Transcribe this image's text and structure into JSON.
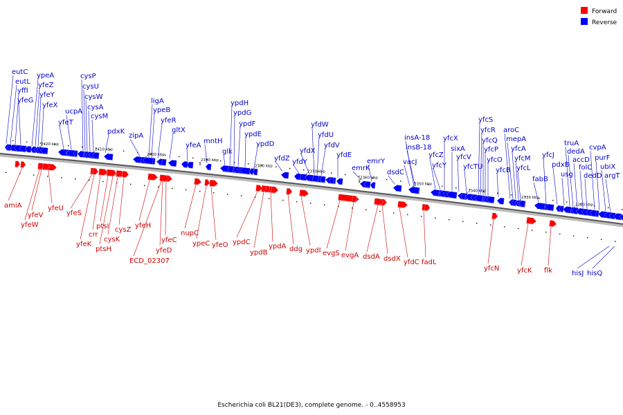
{
  "legend": [
    {
      "label": "Forward",
      "color": "#ff0000"
    },
    {
      "label": "Reverse",
      "color": "#0000ff"
    }
  ],
  "caption": "Escherichia coli BL21(DE3), complete genome. - 0..4558953",
  "colors": {
    "forward": "#ff0000",
    "reverse": "#0000ff",
    "leader_fwd": "#cc0000",
    "leader_rev": "#0000cc"
  },
  "ticks": [
    "2420 kbp",
    "2410 kbp",
    "2400 kbp",
    "2390 kbp",
    "2380 kbp",
    "2370 kbp",
    "2360 kbp",
    "2350 kbp",
    "2340 kbp",
    "2330 kbp",
    "2320 kbp"
  ],
  "reverse_genes": [
    "eutC",
    "eutL",
    "yffI",
    "yfeG",
    "ypeA",
    "yfeZ",
    "yfeY",
    "yfeX",
    "cysP",
    "cysU",
    "cysW",
    "cysA",
    "cysM",
    "ucpA",
    "yfeT",
    "pdxK",
    "zipA",
    "ligA",
    "ypeB",
    "yfeR",
    "gltX",
    "yfeA",
    "mntH",
    "ypdH",
    "ypdG",
    "ypdF",
    "ypdE",
    "ypdD",
    "glk",
    "yfdW",
    "yfdU",
    "yfdV",
    "yfdX",
    "yfdY",
    "yfdZ",
    "yfdE",
    "emrY",
    "emrK",
    "dsdC",
    "insA-18",
    "insB-18",
    "vacJ",
    "yfcZ",
    "yfcY",
    "yfcX",
    "sixA",
    "yfcV",
    "yfcTU",
    "yfcS",
    "yfcR",
    "yfcQ",
    "yfcP",
    "yfcO",
    "aroC",
    "mepA",
    "yfcA",
    "yfcM",
    "yfcB",
    "yfcL",
    "fabB",
    "yfcJ",
    "truA",
    "dedA",
    "pdxB",
    "accD",
    "usg",
    "folC",
    "cvpA",
    "purF",
    "ubiX",
    "dedD",
    "argT",
    "hisJ",
    "hisQ"
  ],
  "forward_genes": [
    "amiA",
    "yfeV",
    "yfeW",
    "yfeU",
    "yfeS",
    "yfeK",
    "crr",
    "ptsI",
    "ptsH",
    "cysK",
    "cysZ",
    "yfeH",
    "yfeC",
    "yfeD",
    "ECD_02307",
    "nupC",
    "ypeC",
    "yfeO",
    "ypdC",
    "ypdB",
    "ypdA",
    "ddg",
    "ypdI",
    "evgS",
    "evgA",
    "dsdA",
    "dsdX",
    "yfdC",
    "fadL",
    "yfcN",
    "yfcK",
    "flk"
  ]
}
